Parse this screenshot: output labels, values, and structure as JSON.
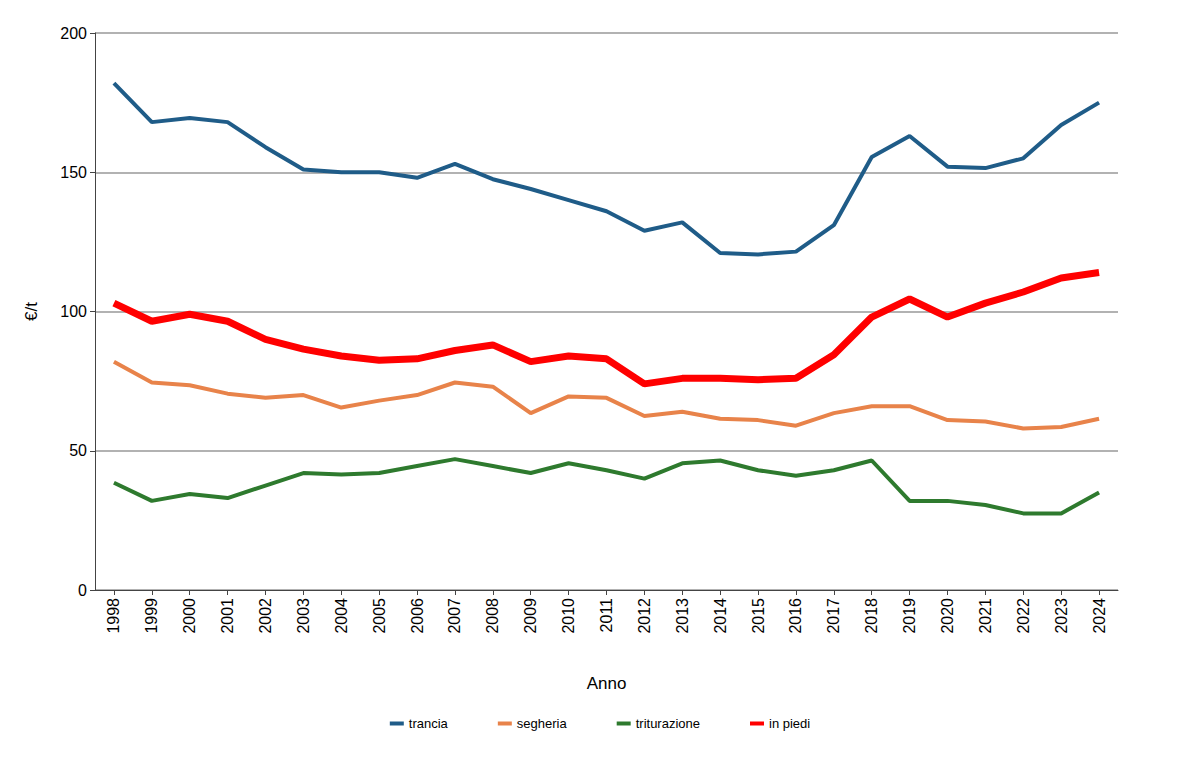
{
  "chart_data": {
    "type": "line",
    "x_label": "Anno",
    "y_label": "€/t",
    "categories": [
      "1998",
      "1999",
      "2000",
      "2001",
      "2002",
      "2003",
      "2004",
      "2005",
      "2006",
      "2007",
      "2008",
      "2009",
      "2010",
      "2011",
      "2012",
      "2013",
      "2014",
      "2015",
      "2016",
      "2017",
      "2018",
      "2019",
      "2020",
      "2021",
      "2022",
      "2023",
      "2024"
    ],
    "series": [
      {
        "name": "trancia",
        "color": "#1f5c88",
        "line_style": "solid",
        "values": [
          182,
          168,
          169.5,
          168,
          159,
          151,
          150,
          150,
          148,
          153,
          147.5,
          144,
          140,
          136,
          129,
          132,
          121,
          120.5,
          121.5,
          131,
          155.5,
          163,
          152,
          151.5,
          155,
          167,
          175
        ]
      },
      {
        "name": "segheria",
        "color": "#e8834a",
        "line_style": "solid",
        "values": [
          82,
          74.5,
          73.5,
          70.5,
          69,
          70,
          65.5,
          68,
          70,
          74.5,
          73,
          63.5,
          69.5,
          69,
          62.5,
          64,
          61.5,
          61,
          59,
          63.5,
          66,
          66,
          61,
          60.5,
          58,
          58.5,
          61.5
        ]
      },
      {
        "name": "triturazione",
        "color": "#2e7a2e",
        "line_style": "solid",
        "values": [
          38.5,
          32,
          34.5,
          33,
          37.5,
          42,
          41.5,
          42,
          44.5,
          47,
          44.5,
          42,
          45.5,
          43,
          40,
          45.5,
          46.5,
          43,
          41,
          43,
          46.5,
          32,
          32,
          30.5,
          27.5,
          27.5,
          35
        ]
      },
      {
        "name": "in piedi",
        "color": "#ff0000",
        "line_style": "thick",
        "values": [
          103,
          96.5,
          99,
          96.5,
          90,
          86.5,
          84,
          82.5,
          83,
          86,
          88,
          82,
          84,
          83,
          74,
          76,
          76,
          75.5,
          76,
          84.5,
          98,
          104.5,
          98,
          103,
          107,
          112,
          114
        ]
      }
    ],
    "ylim": [
      0,
      200
    ],
    "yticks": [
      0,
      50,
      100,
      150,
      200
    ],
    "grid": true,
    "legend": "bottom"
  }
}
